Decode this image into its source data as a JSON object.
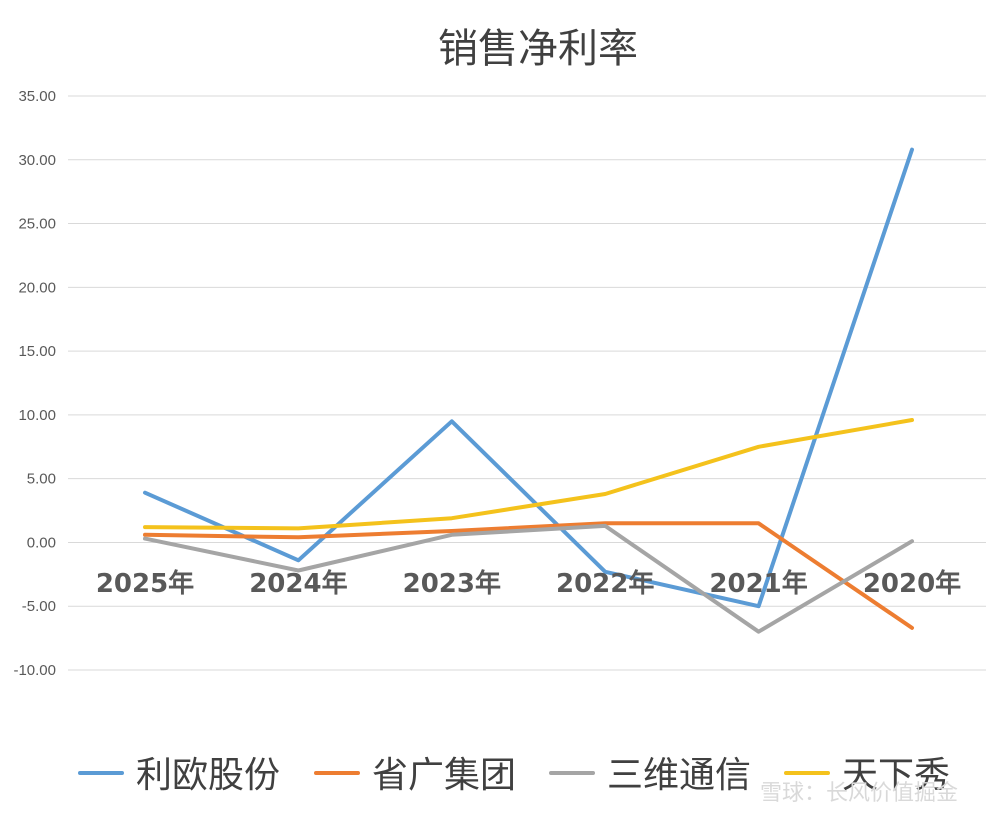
{
  "chart_data": {
    "type": "line",
    "title": "销售净利率",
    "categories": [
      "2025年",
      "2024年",
      "2023年",
      "2022年",
      "2021年",
      "2020年"
    ],
    "ylim": [
      -10,
      35
    ],
    "yticks": [
      "35.00",
      "30.00",
      "25.00",
      "20.00",
      "15.00",
      "10.00",
      "5.00",
      "0.00",
      "-5.00",
      "-10.00"
    ],
    "ytick_values": [
      35,
      30,
      25,
      20,
      15,
      10,
      5,
      0,
      -5,
      -10
    ],
    "grid": true,
    "legend_position": "bottom",
    "series": [
      {
        "name": "利欧股份",
        "color": "#5b9bd5",
        "values": [
          3.9,
          -1.4,
          9.5,
          -2.3,
          -5.0,
          30.8
        ]
      },
      {
        "name": "省广集团",
        "color": "#ed7d31",
        "values": [
          0.6,
          0.4,
          0.9,
          1.5,
          1.5,
          -6.7
        ]
      },
      {
        "name": "三维通信",
        "color": "#a5a5a5",
        "values": [
          0.3,
          -2.2,
          0.6,
          1.3,
          -7.0,
          0.1
        ]
      },
      {
        "name": "天下秀",
        "color": "#f4c21c",
        "values": [
          1.2,
          1.1,
          1.9,
          3.8,
          7.5,
          9.6
        ]
      }
    ]
  },
  "watermark": "雪球：长风价值掘金"
}
